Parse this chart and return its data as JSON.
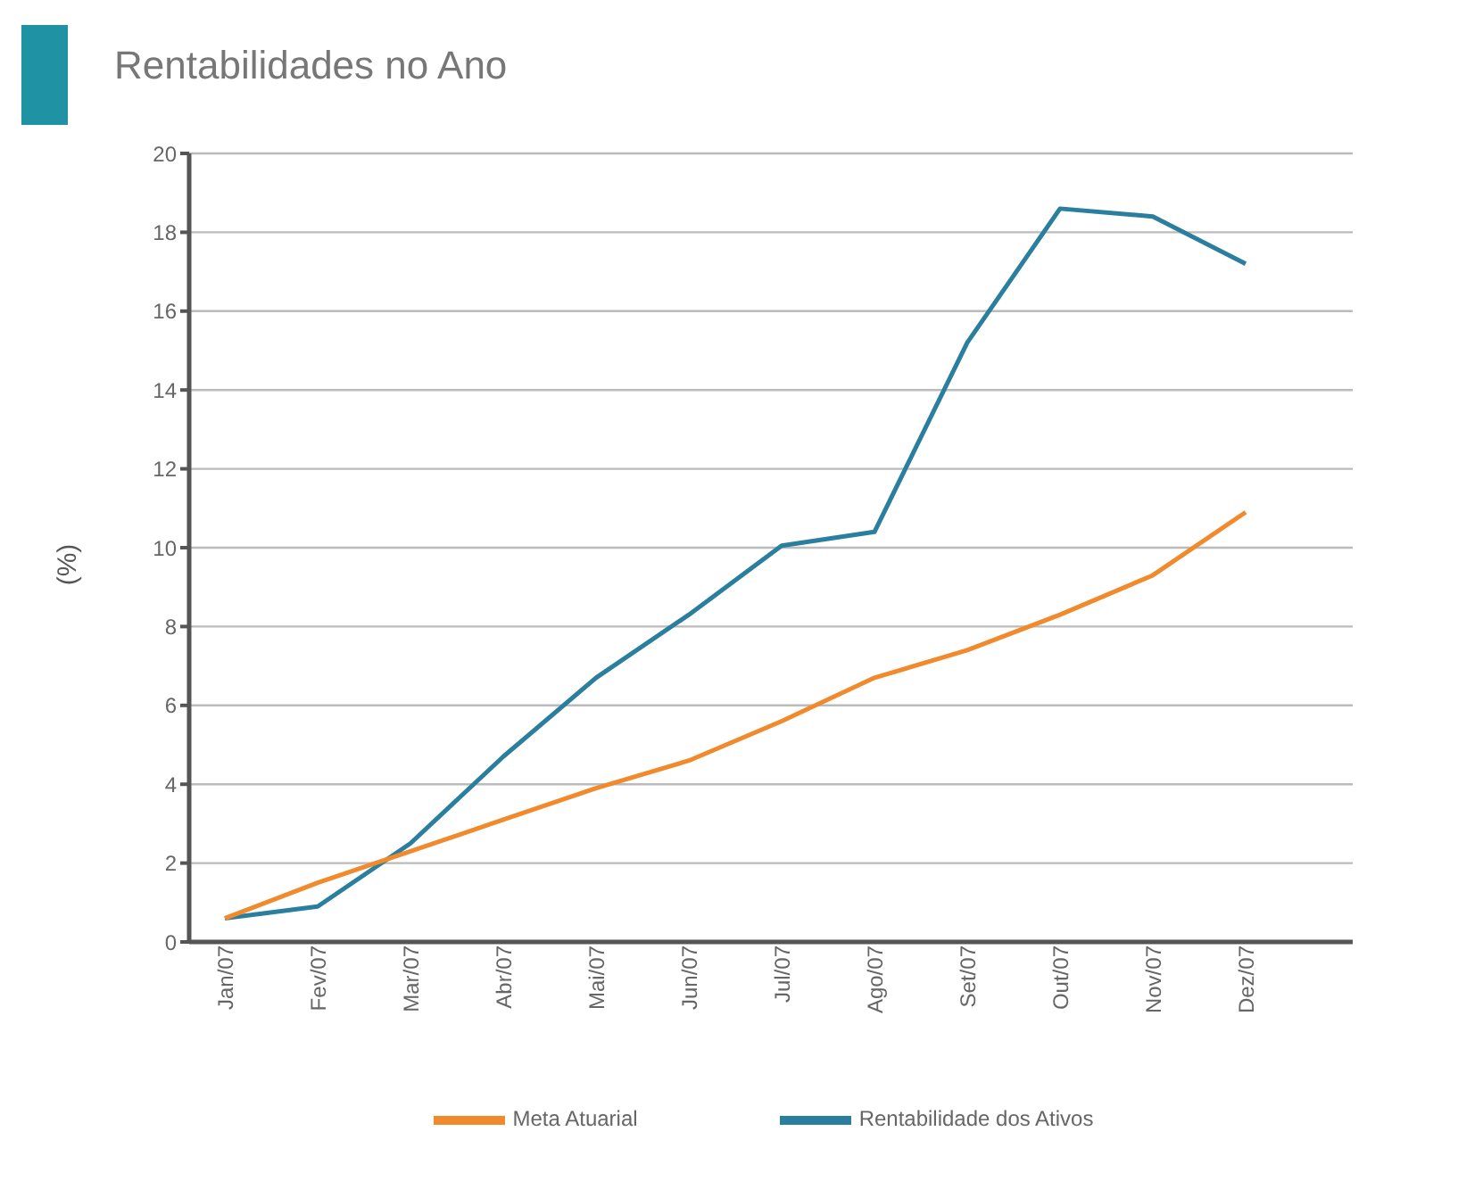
{
  "chart_data": {
    "type": "line",
    "title": "Rentabilidades no Ano",
    "ylabel": "(%)",
    "categories": [
      "Jan/07",
      "Fev/07",
      "Mar/07",
      "Abr/07",
      "Mai/07",
      "Jun/07",
      "Jul/07",
      "Ago/07",
      "Set/07",
      "Out/07",
      "Nov/07",
      "Dez/07"
    ],
    "series": [
      {
        "name": "Rentabilidade dos Ativos",
        "color": "#2a7f9e",
        "values": [
          0.6,
          0.9,
          2.5,
          4.7,
          6.7,
          8.3,
          10.05,
          10.4,
          15.2,
          18.6,
          18.4,
          17.2
        ]
      },
      {
        "name": "Meta Atuarial",
        "color": "#f08a2c",
        "values": [
          0.6,
          1.5,
          2.3,
          3.1,
          3.9,
          4.6,
          5.6,
          6.7,
          7.4,
          8.3,
          9.3,
          10.9
        ]
      }
    ],
    "ylim": [
      0,
      20
    ],
    "yticks": [
      0,
      2,
      4,
      6,
      8,
      10,
      12,
      14,
      16,
      18,
      20
    ],
    "grid": "y",
    "legend": "bottom",
    "marker": "none",
    "line_style": "solid"
  }
}
